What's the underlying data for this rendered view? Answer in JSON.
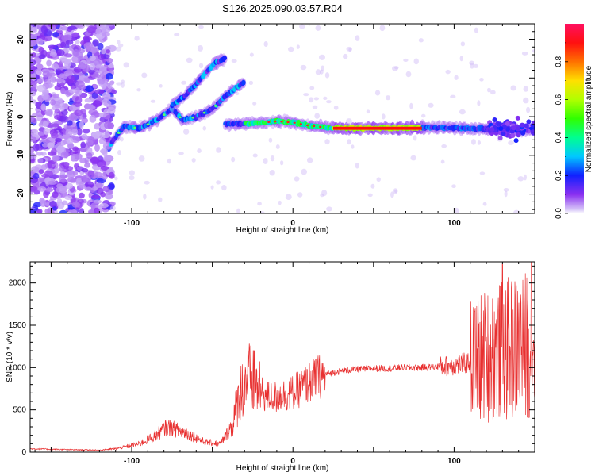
{
  "title": "S126.2025.090.03.57.R04",
  "chart_data": [
    {
      "type": "heatmap",
      "name": "spectrogram",
      "xlabel": "Height of straight line (km)",
      "ylabel": "Frequency (Hz)",
      "xlim": [
        -163,
        150
      ],
      "ylim": [
        -25,
        24
      ],
      "xticks": [
        -100,
        0,
        100
      ],
      "yticks": [
        -20,
        -10,
        0,
        10,
        20
      ],
      "colorbar": {
        "label": "Normalized spectral amplitude",
        "range": [
          0,
          1
        ],
        "ticks": [
          0.0,
          0.2,
          0.4,
          0.6,
          0.8
        ]
      },
      "tracks": [
        {
          "x": [
            -113,
            -105,
            -95,
            -85,
            -75,
            -68,
            -60,
            -50,
            -40,
            -30
          ],
          "y": [
            -7,
            -2.5,
            -3,
            -1,
            2,
            -1,
            0,
            2,
            6,
            9
          ]
        },
        {
          "x": [
            -75,
            -68,
            -61,
            -55,
            -48,
            -42
          ],
          "y": [
            3,
            5,
            8,
            11,
            14,
            15
          ]
        },
        {
          "x": [
            -42,
            -30,
            -20,
            -10,
            0,
            10,
            20,
            30,
            40,
            60,
            80,
            100,
            120,
            140,
            150
          ],
          "y": [
            -2,
            -1.8,
            -1.6,
            -1.2,
            -1.5,
            -2.3,
            -2.8,
            -3,
            -3,
            -3,
            -2.8,
            -2.9,
            -3.2,
            -3.5,
            -3.2
          ]
        }
      ]
    },
    {
      "type": "line",
      "name": "snr",
      "xlabel": "Height of straight line (km)",
      "ylabel": "SNR (10 * v/v)",
      "xlim": [
        -163,
        150
      ],
      "ylim": [
        0,
        2250
      ],
      "xticks": [
        -100,
        0,
        100
      ],
      "yticks": [
        0,
        500,
        1000,
        1500,
        2000
      ],
      "color": "#e83030",
      "envelope": {
        "x": [
          -163,
          -140,
          -120,
          -110,
          -95,
          -85,
          -78,
          -70,
          -65,
          -55,
          -45,
          -38,
          -33,
          -28,
          -24,
          -20,
          -15,
          -10,
          -5,
          0,
          5,
          10,
          15,
          20,
          30,
          40,
          50,
          60,
          70,
          80,
          90,
          100,
          110,
          120,
          130,
          140,
          145,
          150
        ],
        "y": [
          40,
          30,
          25,
          40,
          100,
          200,
          300,
          250,
          220,
          120,
          100,
          300,
          700,
          900,
          800,
          700,
          650,
          650,
          680,
          700,
          760,
          820,
          880,
          920,
          960,
          980,
          990,
          990,
          1000,
          1000,
          1010,
          1030,
          1060,
          1150,
          1200,
          1250,
          1300,
          1300
        ]
      },
      "peaks": [
        {
          "x": -24,
          "y": 1200
        },
        {
          "x": 130,
          "y": 2220
        },
        {
          "x": 148,
          "y": 2250
        }
      ]
    }
  ]
}
